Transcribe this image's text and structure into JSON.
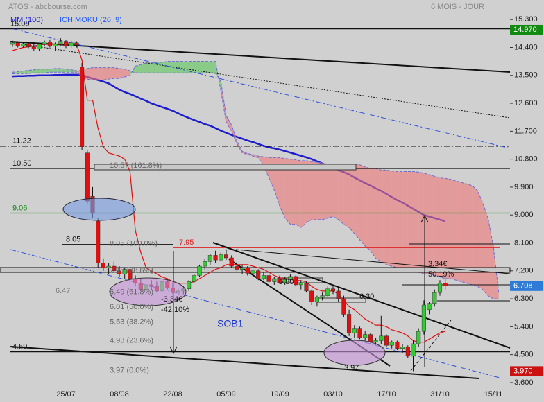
{
  "chart_data": {
    "type": "candlestick",
    "source": "ATOS - abcbourse.com",
    "period": "6 MOIS - JOUR",
    "categories": [
      null,
      null,
      null,
      null,
      null,
      null,
      null,
      null,
      null,
      null,
      "25/07",
      null,
      null,
      null,
      null,
      null,
      null,
      null,
      null,
      null,
      "08/08",
      null,
      null,
      null,
      null,
      null,
      null,
      null,
      null,
      null,
      "22/08",
      null,
      null,
      null,
      null,
      null,
      null,
      null,
      null,
      null,
      "05/09",
      null,
      null,
      null,
      null,
      null,
      null,
      null,
      null,
      null,
      "19/09",
      null,
      null,
      null,
      null,
      null,
      null,
      null,
      null,
      null,
      "03/10",
      null,
      null,
      null,
      null,
      null,
      null,
      null,
      null,
      null,
      "17/10",
      null,
      null,
      null,
      null,
      null,
      null,
      null,
      null,
      null,
      "31/10",
      null,
      null,
      null,
      null,
      null,
      null,
      null,
      null,
      null,
      "15/11",
      null
    ],
    "ohlc": {
      "up_color": "#33cc33",
      "down_color": "#dd1111",
      "open": [
        14.5,
        14.55,
        14.45,
        14.52,
        14.42,
        14.35,
        14.5,
        14.58,
        14.45,
        14.52,
        14.6,
        14.44,
        14.55,
        13.78,
        11.0,
        9.6,
        8.8,
        7.45,
        7.3,
        7.35,
        7.2,
        7.1,
        7.25,
        6.95,
        6.8,
        6.6,
        6.75,
        6.7,
        6.55,
        6.85,
        6.65,
        6.5,
        6.55,
        6.62,
        6.85,
        7.05,
        7.35,
        7.5,
        7.7,
        7.55,
        7.72,
        7.62,
        7.35,
        7.25,
        7.3,
        7.12,
        7.2,
        6.95,
        7.05,
        6.85,
        6.95,
        6.82,
        6.92,
        7.02,
        6.75,
        6.8,
        6.55,
        6.2,
        6.35,
        6.4,
        6.62,
        6.55,
        6.3,
        5.8,
        5.2,
        5.35,
        5.05,
        5.15,
        4.9,
        4.95,
        5.1,
        4.8,
        4.9,
        4.7,
        4.75,
        4.45,
        4.85,
        5.25,
        5.95,
        6.15,
        6.5,
        6.8,
        null,
        null,
        null,
        null,
        null,
        null,
        null,
        null,
        null,
        null
      ],
      "high": [
        14.62,
        14.6,
        14.58,
        14.56,
        14.5,
        14.55,
        14.62,
        14.66,
        14.56,
        14.7,
        14.64,
        14.62,
        14.6,
        13.9,
        11.1,
        9.9,
        8.9,
        7.6,
        7.45,
        7.5,
        7.35,
        7.3,
        7.3,
        7.05,
        6.95,
        6.8,
        6.9,
        6.85,
        6.95,
        6.95,
        6.8,
        6.65,
        6.7,
        6.9,
        7.1,
        7.4,
        7.6,
        7.75,
        7.85,
        7.8,
        7.9,
        7.7,
        7.5,
        7.4,
        7.35,
        7.3,
        7.25,
        7.15,
        7.1,
        7.0,
        7.05,
        7.0,
        7.1,
        7.05,
        6.9,
        6.85,
        6.6,
        6.4,
        6.5,
        6.7,
        6.75,
        6.65,
        6.4,
        5.95,
        5.45,
        5.4,
        5.25,
        5.2,
        5.05,
        5.75,
        5.15,
        4.95,
        4.95,
        4.85,
        4.8,
        4.95,
        5.35,
        6.25,
        6.2,
        6.6,
        6.9,
        6.95,
        null,
        null,
        null,
        null,
        null,
        null,
        null,
        null,
        null,
        null
      ],
      "low": [
        14.42,
        14.4,
        14.4,
        14.38,
        14.3,
        14.3,
        14.44,
        14.4,
        14.28,
        14.46,
        14.38,
        14.4,
        14.4,
        11.1,
        9.35,
        8.9,
        7.3,
        7.2,
        7.1,
        7.15,
        7.0,
        6.95,
        6.9,
        6.7,
        6.55,
        6.45,
        6.6,
        6.5,
        6.5,
        6.6,
        6.45,
        6.4,
        6.45,
        6.55,
        6.8,
        7.0,
        7.25,
        7.4,
        7.45,
        7.5,
        7.55,
        7.3,
        7.15,
        7.1,
        7.05,
        7.0,
        6.9,
        6.9,
        6.8,
        6.75,
        6.78,
        6.75,
        6.85,
        6.7,
        6.6,
        6.5,
        6.1,
        6.05,
        6.25,
        6.35,
        6.45,
        6.2,
        5.7,
        5.1,
        5.05,
        5.0,
        4.95,
        4.85,
        4.8,
        4.85,
        4.75,
        4.7,
        4.65,
        4.55,
        4.4,
        3.97,
        4.75,
        5.15,
        5.8,
        6.05,
        6.4,
        6.6,
        null,
        null,
        null,
        null,
        null,
        null,
        null,
        null,
        null,
        null
      ],
      "close": [
        14.55,
        14.45,
        14.52,
        14.42,
        14.35,
        14.5,
        14.58,
        14.45,
        14.52,
        14.6,
        14.44,
        14.55,
        14.48,
        11.2,
        9.45,
        9.05,
        7.45,
        7.3,
        7.35,
        7.2,
        7.1,
        7.25,
        6.95,
        6.8,
        6.6,
        6.75,
        6.7,
        6.55,
        6.85,
        6.65,
        6.5,
        6.55,
        6.62,
        6.85,
        7.05,
        7.35,
        7.5,
        7.7,
        7.55,
        7.72,
        7.62,
        7.35,
        7.25,
        7.3,
        7.12,
        7.2,
        6.95,
        7.05,
        6.85,
        6.95,
        6.82,
        6.92,
        7.02,
        6.75,
        6.8,
        6.55,
        6.2,
        6.35,
        6.4,
        6.62,
        6.55,
        6.3,
        5.8,
        5.2,
        5.35,
        5.05,
        5.15,
        4.9,
        4.95,
        5.1,
        4.8,
        4.9,
        4.7,
        4.75,
        4.45,
        4.85,
        5.25,
        6.1,
        6.15,
        6.5,
        6.8,
        6.71,
        null,
        null,
        null,
        null,
        null,
        null,
        null,
        null,
        null,
        null
      ]
    },
    "moving_average": {
      "name": "MM (100)",
      "color": "#1c1ccc",
      "values": [
        13.47,
        13.48,
        13.48,
        13.49,
        13.49,
        13.5,
        13.5,
        13.5,
        13.51,
        13.51,
        13.52,
        13.52,
        13.52,
        13.52,
        13.45,
        13.4,
        13.35,
        13.3,
        13.24,
        13.14,
        13.04,
        12.96,
        12.9,
        12.83,
        12.75,
        12.68,
        12.6,
        12.54,
        12.48,
        12.42,
        12.36,
        12.28,
        12.2,
        12.13,
        12.06,
        12.0,
        11.93,
        11.88,
        11.8,
        11.72,
        11.65,
        11.58,
        11.52,
        11.46,
        11.4,
        11.35,
        11.29,
        11.23,
        11.18,
        11.15,
        11.11,
        11.06,
        11.01,
        10.96,
        10.91,
        10.86,
        10.8,
        10.73,
        10.66,
        10.59,
        10.52,
        10.45,
        10.38,
        10.31,
        10.21,
        10.12,
        10.03,
        9.95,
        9.86,
        9.78,
        9.68,
        9.58,
        9.48,
        9.4,
        9.3,
        9.2,
        9.1,
        9.0,
        8.95,
        8.9,
        8.85,
        8.8,
        null,
        null,
        null,
        null,
        null,
        null,
        null,
        null,
        null,
        null
      ]
    },
    "ichimoku": {
      "name": "ICHIMOKU (26, 9)",
      "color": "#1e5bff",
      "tenkan_color": "#dd1111",
      "span_color": "#6a6ad0",
      "bull_fill": "#5cc85c",
      "bear_fill": "#ee7777",
      "tenkan": [
        14.3,
        14.35,
        14.4,
        14.42,
        14.45,
        14.48,
        14.5,
        14.5,
        14.5,
        14.5,
        14.52,
        14.52,
        14.5,
        14.0,
        12.7,
        12.7,
        11.8,
        11.2,
        11.0,
        10.95,
        10.9,
        10.8,
        10.4,
        8.5,
        7.8,
        7.3,
        7.2,
        7.1,
        7.0,
        6.95,
        6.85,
        6.8,
        6.8,
        6.8,
        6.85,
        6.95,
        7.05,
        7.15,
        7.25,
        7.3,
        7.4,
        7.4,
        7.4,
        7.4,
        7.4,
        7.35,
        7.3,
        7.25,
        7.15,
        7.05,
        6.98,
        6.95,
        6.92,
        6.9,
        6.88,
        6.85,
        6.7,
        6.6,
        6.55,
        6.55,
        6.55,
        6.45,
        6.25,
        6.05,
        5.95,
        5.8,
        5.65,
        5.55,
        5.45,
        5.45,
        5.4,
        5.3,
        5.25,
        5.2,
        5.1,
        4.95,
        4.9,
        4.9,
        5.0,
        5.1,
        5.2,
        5.25,
        null,
        null,
        null,
        null,
        null,
        null,
        null,
        null,
        null,
        null
      ],
      "senkou_a": [
        13.6,
        13.62,
        13.64,
        13.66,
        13.68,
        13.7,
        13.7,
        13.7,
        13.72,
        13.72,
        13.7,
        13.68,
        13.65,
        13.4,
        13.38,
        13.35,
        13.35,
        13.35,
        13.38,
        13.4,
        13.4,
        13.45,
        13.5,
        13.8,
        13.85,
        13.9,
        13.9,
        13.92,
        13.92,
        13.95,
        13.95,
        13.95,
        13.95,
        13.95,
        13.95,
        13.95,
        13.95,
        13.95,
        13.95,
        13.0,
        12.0,
        11.7,
        11.3,
        11.0,
        10.95,
        10.9,
        10.85,
        10.6,
        10.2,
        9.8,
        9.3,
        8.9,
        8.7,
        8.7,
        8.6,
        8.75,
        8.85,
        8.85,
        8.85,
        8.9,
        8.95,
        8.85,
        8.7,
        8.6,
        8.4,
        8.2,
        8.0,
        7.85,
        7.6,
        7.5,
        7.4,
        7.35,
        7.3,
        7.3,
        7.25,
        7.2,
        7.15,
        7.1,
        7.1,
        7.05,
        7.0,
        6.95,
        6.95,
        6.9,
        6.85,
        6.8,
        6.75,
        6.7,
        6.6,
        6.4,
        6.3,
        6.3
      ],
      "senkou_b": [
        13.55,
        13.55,
        13.56,
        13.56,
        13.58,
        13.58,
        13.58,
        13.6,
        13.6,
        13.6,
        13.6,
        13.6,
        13.6,
        13.7,
        13.72,
        13.75,
        13.75,
        13.75,
        13.75,
        13.75,
        13.72,
        13.7,
        13.65,
        13.58,
        13.58,
        13.58,
        13.58,
        13.58,
        13.58,
        13.58,
        13.58,
        13.58,
        13.58,
        13.58,
        13.58,
        13.58,
        13.58,
        13.58,
        13.58,
        13.3,
        12.2,
        11.9,
        11.4,
        11.05,
        10.98,
        10.95,
        10.9,
        10.88,
        10.85,
        10.85,
        10.85,
        10.82,
        10.8,
        10.78,
        10.75,
        10.75,
        10.72,
        10.7,
        10.68,
        10.62,
        10.6,
        10.55,
        10.55,
        10.6,
        10.65,
        10.62,
        10.55,
        10.5,
        10.5,
        10.45,
        10.45,
        10.42,
        10.4,
        10.4,
        10.4,
        10.4,
        10.38,
        10.35,
        10.3,
        10.25,
        10.2,
        10.18,
        10.15,
        10.1,
        10.05,
        10.0,
        9.95,
        9.8,
        9.4,
        8.9,
        8.0,
        6.5
      ]
    },
    "ylim": [
      3.42,
      15.93
    ],
    "yticks": [
      {
        "value": 15.3,
        "label": "15.300"
      },
      {
        "value": 14.4,
        "label": "14.400"
      },
      {
        "value": 13.5,
        "label": "13.500"
      },
      {
        "value": 12.6,
        "label": "12.600"
      },
      {
        "value": 11.7,
        "label": "11.700"
      },
      {
        "value": 10.8,
        "label": "10.800"
      },
      {
        "value": 9.9,
        "label": "9.900"
      },
      {
        "value": 9.0,
        "label": "9.000"
      },
      {
        "value": 8.1,
        "label": "8.100"
      },
      {
        "value": 7.2,
        "label": "7.200"
      },
      {
        "value": 6.3,
        "label": "6.300"
      },
      {
        "value": 5.4,
        "label": "5.400"
      },
      {
        "value": 4.5,
        "label": "4.500"
      },
      {
        "value": 3.6,
        "label": "3.600"
      }
    ],
    "price_tags": [
      {
        "value": 14.97,
        "label": "14.970",
        "color": "#128a12"
      },
      {
        "value": 6.708,
        "label": "6.708",
        "color": "#2d7bd6"
      },
      {
        "value": 3.97,
        "label": "3.970",
        "color": "#cc1111"
      }
    ],
    "levels": [
      {
        "value": 15.0,
        "label": "15.00",
        "color": "#111111",
        "dash": "none"
      },
      {
        "value": 11.22,
        "label": "11.22",
        "color": "#111111",
        "dash": "8 3 2 3"
      },
      {
        "value": 10.5,
        "label": "10.50",
        "color": "#111111",
        "dash": "none"
      },
      {
        "value": 9.06,
        "label": "9.06",
        "color": "#118811",
        "dash": "none"
      },
      {
        "value": 8.05,
        "label": "8.05",
        "color": "#111111",
        "dash": "none"
      },
      {
        "value": 7.95,
        "label": "7.95",
        "color": "#dd2222",
        "dash": "none"
      },
      {
        "value": 4.59,
        "label": "4.59",
        "color": "#111111",
        "dash": "none"
      }
    ],
    "fibonacci": {
      "color": "#666666",
      "levels": [
        {
          "value": 10.57,
          "label": "10.57 (161.8%)"
        },
        {
          "value": 8.05,
          "label": "8.05 (100.0%)"
        },
        {
          "value": 7.18,
          "label": "7.18 (78.6%)"
        },
        {
          "value": 6.49,
          "label": "6.49 (61.8%)"
        },
        {
          "value": 6.01,
          "label": "6.01 (50.0%)"
        },
        {
          "value": 5.53,
          "label": "5.53 (38.2%)"
        },
        {
          "value": 4.93,
          "label": "4.93 (23.6%)"
        },
        {
          "value": 3.97,
          "label": "3.97 (0.0%)"
        }
      ]
    },
    "annotations": [
      {
        "text": "-3.34€",
        "color": "#111111"
      },
      {
        "text": "-42.10%",
        "color": "#111111"
      },
      {
        "text": "3.34€",
        "color": "#111111"
      },
      {
        "text": "50.19%",
        "color": "#111111"
      },
      {
        "text": "SOB1",
        "color": "#1a33cc"
      },
      {
        "text": "6.80",
        "color": "#111111"
      },
      {
        "text": "6.30",
        "color": "#111111"
      },
      {
        "text": "3.97",
        "color": "#111111"
      },
      {
        "text": "6.47",
        "color": "#777777"
      }
    ]
  }
}
